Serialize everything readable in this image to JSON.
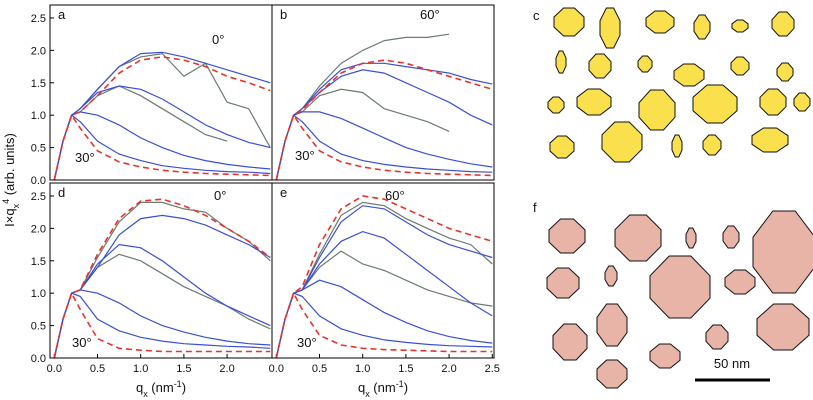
{
  "chart_data": [
    {
      "type": "line",
      "panel_label": "a",
      "annotations": [
        "0°",
        "30°"
      ],
      "ylabel": [
        "I×q",
        "x",
        "4",
        " (arb. units)"
      ],
      "xlim": [
        -0.05,
        2.52
      ],
      "ylim": [
        0,
        2.7
      ],
      "yticks": [
        {
          "value": 0,
          "label": "0.0"
        },
        0.5,
        {
          "value": 1,
          "label": "1.0"
        },
        1.5,
        {
          "value": 2,
          "label": "2.0"
        },
        2.5
      ],
      "x": [
        0,
        0.1,
        0.2,
        0.3,
        0.5,
        0.75,
        1,
        1.25,
        1.5,
        1.75,
        2,
        2.25,
        2.5
      ],
      "series": [
        {
          "color": "#6b7a72",
          "values": [
            0,
            0.6,
            1.0,
            1.1,
            1.4,
            1.75,
            1.9,
            1.95,
            1.6,
            1.8,
            1.2,
            1.1,
            0.5
          ]
        },
        {
          "color": "#6b7a72",
          "values": [
            0,
            0.6,
            1.0,
            1.05,
            1.3,
            1.45,
            1.3,
            1.1,
            0.9,
            0.7,
            0.6,
            null,
            null
          ]
        },
        {
          "color": "#3a4fd6",
          "values": [
            0,
            0.6,
            1.0,
            1.1,
            1.4,
            1.75,
            1.95,
            1.97,
            1.9,
            1.8,
            1.7,
            1.6,
            1.5
          ]
        },
        {
          "color": "#3a4fd6",
          "values": [
            0,
            0.6,
            1.0,
            1.1,
            1.35,
            1.45,
            1.4,
            1.25,
            1.05,
            0.85,
            0.7,
            0.58,
            0.5
          ]
        },
        {
          "color": "#3a4fd6",
          "values": [
            0,
            0.6,
            1.0,
            1.05,
            1.0,
            0.85,
            0.65,
            0.5,
            0.38,
            0.3,
            0.24,
            0.2,
            0.17
          ]
        },
        {
          "color": "#3a4fd6",
          "values": [
            0,
            0.6,
            1.0,
            0.9,
            0.6,
            0.4,
            0.3,
            0.22,
            0.18,
            0.15,
            0.13,
            0.12,
            0.1
          ]
        },
        {
          "color": "#e8332a",
          "dashed": true,
          "values": [
            0,
            0.6,
            1.0,
            1.05,
            1.3,
            1.65,
            1.85,
            1.9,
            1.85,
            1.75,
            1.6,
            1.5,
            1.38
          ]
        },
        {
          "color": "#e8332a",
          "dashed": true,
          "values": [
            0,
            0.6,
            1.0,
            0.8,
            0.45,
            0.28,
            0.2,
            0.15,
            0.12,
            0.1,
            0.09,
            0.08,
            0.07
          ]
        }
      ]
    },
    {
      "type": "line",
      "panel_label": "b",
      "annotations": [
        "60°",
        "30°"
      ],
      "xlim": [
        -0.05,
        2.52
      ],
      "ylim": [
        0,
        2.7
      ],
      "x": [
        0,
        0.1,
        0.2,
        0.3,
        0.5,
        0.75,
        1,
        1.25,
        1.5,
        1.75,
        2,
        2.25,
        2.5
      ],
      "series": [
        {
          "color": "#6b7a72",
          "values": [
            0,
            0.6,
            1.0,
            1.1,
            1.45,
            1.8,
            2.0,
            2.15,
            2.2,
            2.2,
            2.25,
            null,
            null
          ]
        },
        {
          "color": "#6b7a72",
          "values": [
            0,
            0.6,
            1.0,
            1.05,
            1.3,
            1.4,
            1.35,
            1.1,
            1.0,
            0.9,
            0.75,
            null,
            null
          ]
        },
        {
          "color": "#3a4fd6",
          "values": [
            0,
            0.6,
            1.0,
            1.1,
            1.4,
            1.7,
            1.8,
            1.8,
            1.75,
            1.7,
            1.65,
            1.55,
            1.48
          ]
        },
        {
          "color": "#3a4fd6",
          "values": [
            0,
            0.6,
            1.0,
            1.1,
            1.35,
            1.6,
            1.7,
            1.65,
            1.5,
            1.35,
            1.2,
            1.0,
            0.85
          ]
        },
        {
          "color": "#3a4fd6",
          "values": [
            0,
            0.6,
            1.0,
            1.05,
            1.05,
            0.95,
            0.8,
            0.65,
            0.5,
            0.4,
            0.32,
            0.25,
            0.2
          ]
        },
        {
          "color": "#3a4fd6",
          "values": [
            0,
            0.6,
            1.0,
            0.9,
            0.6,
            0.4,
            0.3,
            0.24,
            0.2,
            0.17,
            0.15,
            0.13,
            0.12
          ]
        },
        {
          "color": "#e8332a",
          "dashed": true,
          "values": [
            0,
            0.6,
            1.0,
            1.08,
            1.35,
            1.65,
            1.8,
            1.85,
            1.8,
            1.7,
            1.6,
            1.5,
            1.4
          ]
        },
        {
          "color": "#e8332a",
          "dashed": true,
          "values": [
            0,
            0.6,
            1.0,
            0.8,
            0.45,
            0.28,
            0.2,
            0.15,
            0.12,
            0.1,
            0.09,
            0.08,
            0.07
          ]
        }
      ]
    },
    {
      "type": "line",
      "panel_label": "d",
      "annotations": [
        "0°",
        "30°"
      ],
      "xlabel": [
        "q",
        "x",
        " (nm",
        "-1",
        ")"
      ],
      "xlim": [
        -0.05,
        2.52
      ],
      "ylim": [
        0,
        2.7
      ],
      "yticks": [
        {
          "value": 0,
          "label": "0.0"
        },
        0.5,
        {
          "value": 1,
          "label": "1.0"
        },
        1.5,
        {
          "value": 2,
          "label": "2.0"
        },
        2.5
      ],
      "xticks": [
        {
          "value": 0,
          "label": "0.0"
        },
        0.5,
        {
          "value": 1,
          "label": "1.0"
        },
        1.5,
        {
          "value": 2,
          "label": "2.0"
        }
      ],
      "x": [
        0,
        0.1,
        0.2,
        0.3,
        0.5,
        0.75,
        1,
        1.25,
        1.5,
        1.75,
        2,
        2.25,
        2.5
      ],
      "series": [
        {
          "color": "#6b7a72",
          "values": [
            0,
            0.6,
            1.0,
            1.05,
            1.55,
            2.1,
            2.4,
            2.4,
            2.3,
            2.25,
            2.0,
            1.8,
            1.5
          ]
        },
        {
          "color": "#6b7a72",
          "values": [
            0,
            0.6,
            1.0,
            1.05,
            1.4,
            1.6,
            1.5,
            1.3,
            1.1,
            0.95,
            0.8,
            0.6,
            0.45
          ]
        },
        {
          "color": "#3a4fd6",
          "values": [
            0,
            0.6,
            1.0,
            1.05,
            1.4,
            1.9,
            2.15,
            2.2,
            2.15,
            2.05,
            1.9,
            1.75,
            1.55
          ]
        },
        {
          "color": "#3a4fd6",
          "values": [
            0,
            0.6,
            1.0,
            1.05,
            1.45,
            1.75,
            1.7,
            1.5,
            1.25,
            1.0,
            0.8,
            0.65,
            0.5
          ]
        },
        {
          "color": "#3a4fd6",
          "values": [
            0,
            0.6,
            1.0,
            1.05,
            1.0,
            0.85,
            0.65,
            0.5,
            0.4,
            0.32,
            0.26,
            0.22,
            0.2
          ]
        },
        {
          "color": "#3a4fd6",
          "values": [
            0,
            0.6,
            1.0,
            0.95,
            0.6,
            0.42,
            0.32,
            0.26,
            0.22,
            0.2,
            0.18,
            0.17,
            0.15
          ]
        },
        {
          "color": "#e8332a",
          "dashed": true,
          "values": [
            0,
            0.6,
            1.0,
            1.05,
            1.6,
            2.15,
            2.42,
            2.45,
            2.35,
            2.2,
            2.0,
            1.8,
            1.55
          ]
        },
        {
          "color": "#e8332a",
          "dashed": true,
          "values": [
            0,
            0.6,
            1.0,
            0.75,
            0.3,
            0.15,
            0.12,
            0.1,
            0.1,
            0.1,
            0.1,
            0.1,
            0.1
          ]
        }
      ]
    },
    {
      "type": "line",
      "panel_label": "e",
      "annotations": [
        "60°",
        "30°"
      ],
      "xlabel": [
        "q",
        "x",
        " (nm",
        "-1",
        ")"
      ],
      "xlim": [
        -0.05,
        2.52
      ],
      "ylim": [
        0,
        2.7
      ],
      "xticks": [
        {
          "value": 0,
          "label": "0.0"
        },
        0.5,
        {
          "value": 1,
          "label": "1.0"
        },
        1.5,
        {
          "value": 2,
          "label": "2.0"
        },
        2.5
      ],
      "x": [
        0,
        0.1,
        0.2,
        0.3,
        0.5,
        0.75,
        1,
        1.25,
        1.5,
        1.75,
        2,
        2.25,
        2.5
      ],
      "series": [
        {
          "color": "#6b7a72",
          "values": [
            0,
            0.6,
            1.0,
            1.05,
            1.6,
            2.2,
            2.4,
            2.35,
            2.15,
            2.0,
            1.85,
            1.75,
            1.45
          ]
        },
        {
          "color": "#6b7a72",
          "values": [
            0,
            0.6,
            1.0,
            1.05,
            1.4,
            1.65,
            1.45,
            1.35,
            1.2,
            1.05,
            0.95,
            0.85,
            0.8
          ]
        },
        {
          "color": "#3a4fd6",
          "values": [
            0,
            0.6,
            1.0,
            1.05,
            1.55,
            2.1,
            2.35,
            2.3,
            2.1,
            1.9,
            1.75,
            1.65,
            1.55
          ]
        },
        {
          "color": "#3a4fd6",
          "values": [
            0,
            0.6,
            1.0,
            1.05,
            1.45,
            1.8,
            1.95,
            1.85,
            1.6,
            1.35,
            1.1,
            0.85,
            0.65
          ]
        },
        {
          "color": "#3a4fd6",
          "values": [
            0,
            0.6,
            1.0,
            1.05,
            1.2,
            1.1,
            0.9,
            0.7,
            0.55,
            0.42,
            0.33,
            0.27,
            0.23
          ]
        },
        {
          "color": "#3a4fd6",
          "values": [
            0,
            0.6,
            1.0,
            0.95,
            0.65,
            0.45,
            0.35,
            0.28,
            0.24,
            0.21,
            0.19,
            0.18,
            0.17
          ]
        },
        {
          "color": "#e8332a",
          "dashed": true,
          "values": [
            0,
            0.6,
            1.0,
            1.1,
            1.75,
            2.3,
            2.5,
            2.45,
            2.3,
            2.15,
            2.0,
            1.9,
            1.8
          ]
        },
        {
          "color": "#e8332a",
          "dashed": true,
          "values": [
            0,
            0.6,
            1.0,
            0.75,
            0.35,
            0.2,
            0.15,
            0.13,
            0.12,
            0.11,
            0.1,
            0.1,
            0.1
          ]
        }
      ]
    }
  ],
  "diagrams": [
    {
      "label": "c"
    },
    {
      "label": "f",
      "scale_bar": "50 nm"
    }
  ]
}
